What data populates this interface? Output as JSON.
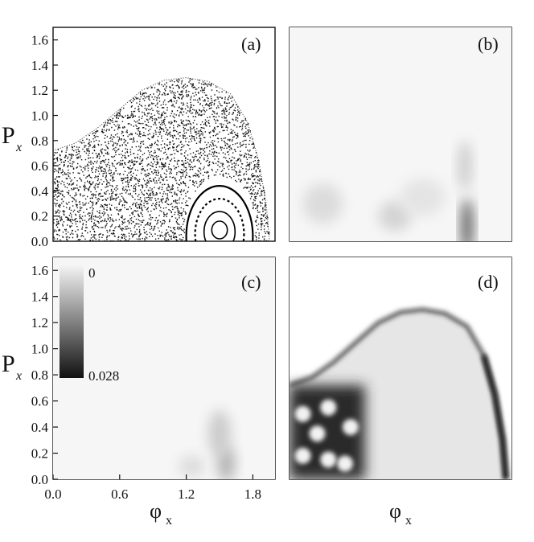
{
  "figure": {
    "colorbar": {
      "max_label": "0.028",
      "min_label": "0",
      "range": [
        0,
        0.028
      ]
    }
  },
  "chart_data": [
    {
      "panel": "(a)",
      "type": "scatter",
      "description": "Poincaré surface of section (chaotic sea with a regular island)",
      "xlim": [
        0,
        2.0
      ],
      "ylim": [
        0,
        1.7
      ],
      "ylabel_main": "P",
      "ylabel_sub": "x",
      "yticks": [
        "0.0",
        "0.2",
        "0.4",
        "0.6",
        "0.8",
        "1.0",
        "1.2",
        "1.4",
        "1.6"
      ],
      "chaotic_boundary": {
        "x": [
          0.0,
          0.2,
          0.4,
          0.6,
          0.8,
          1.0,
          1.2,
          1.4,
          1.6,
          1.75,
          1.85,
          1.92,
          1.95
        ],
        "y": [
          0.72,
          0.78,
          0.9,
          1.05,
          1.2,
          1.28,
          1.3,
          1.27,
          1.17,
          0.95,
          0.65,
          0.3,
          0.0
        ]
      },
      "regular_island_center": [
        1.5,
        0.1
      ],
      "points_density": "dense"
    },
    {
      "panel": "(b)",
      "type": "heatmap",
      "xlim": [
        0,
        2.0
      ],
      "ylim": [
        0,
        1.7
      ],
      "value_range": [
        0,
        0.028
      ],
      "blobs": [
        {
          "x": 1.6,
          "y": 0.12,
          "sx": 0.05,
          "sy": 0.22,
          "v": 0.02
        },
        {
          "x": 1.58,
          "y": 0.6,
          "sx": 0.06,
          "sy": 0.2,
          "v": 0.005
        },
        {
          "x": 0.95,
          "y": 0.2,
          "sx": 0.15,
          "sy": 0.12,
          "v": 0.004
        },
        {
          "x": 0.3,
          "y": 0.3,
          "sx": 0.18,
          "sy": 0.16,
          "v": 0.003
        },
        {
          "x": 1.2,
          "y": 0.35,
          "sx": 0.2,
          "sy": 0.15,
          "v": 0.002
        }
      ]
    },
    {
      "panel": "(c)",
      "type": "heatmap",
      "xlim": [
        0,
        2.0
      ],
      "ylim": [
        0,
        1.7
      ],
      "xticks": [
        "0.0",
        "0.6",
        "1.2",
        "1.8"
      ],
      "xlabel_main": "φ",
      "xlabel_sub": "x",
      "ylabel_main": "P",
      "ylabel_sub": "x",
      "yticks": [
        "0.0",
        "0.2",
        "0.4",
        "0.6",
        "0.8",
        "1.0",
        "1.2",
        "1.4",
        "1.6"
      ],
      "value_range": [
        0,
        0.028
      ],
      "blobs": [
        {
          "x": 1.56,
          "y": 0.12,
          "sx": 0.08,
          "sy": 0.14,
          "v": 0.008
        },
        {
          "x": 1.5,
          "y": 0.35,
          "sx": 0.1,
          "sy": 0.18,
          "v": 0.005
        },
        {
          "x": 1.25,
          "y": 0.1,
          "sx": 0.12,
          "sy": 0.08,
          "v": 0.003
        }
      ]
    },
    {
      "panel": "(d)",
      "type": "heatmap",
      "xlim": [
        0,
        2.0
      ],
      "ylim": [
        0,
        1.7
      ],
      "xlabel_main": "φ",
      "xlabel_sub": "x",
      "value_range": [
        0,
        0.028
      ],
      "boundary": {
        "x": [
          0.0,
          0.2,
          0.4,
          0.6,
          0.8,
          1.0,
          1.2,
          1.4,
          1.6,
          1.75,
          1.85,
          1.92,
          1.95
        ],
        "y": [
          0.72,
          0.78,
          0.9,
          1.05,
          1.2,
          1.28,
          1.3,
          1.27,
          1.17,
          0.95,
          0.65,
          0.3,
          0.0
        ]
      },
      "bright_spots": [
        {
          "x": 0.12,
          "y": 0.5
        },
        {
          "x": 0.35,
          "y": 0.55
        },
        {
          "x": 0.25,
          "y": 0.35
        },
        {
          "x": 0.12,
          "y": 0.18
        },
        {
          "x": 0.35,
          "y": 0.15
        },
        {
          "x": 0.55,
          "y": 0.4
        },
        {
          "x": 0.5,
          "y": 0.12
        }
      ]
    }
  ]
}
